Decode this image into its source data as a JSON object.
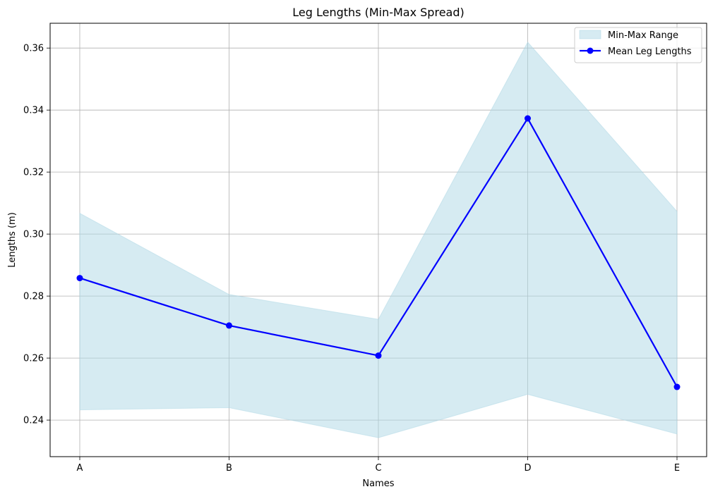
{
  "chart_data": {
    "type": "line",
    "title": "Leg Lengths (Min-Max Spread)",
    "xlabel": "Names",
    "ylabel": "Lengths (m)",
    "categories": [
      "A",
      "B",
      "C",
      "D",
      "E"
    ],
    "series": [
      {
        "name": "Mean Leg Lengths",
        "values": [
          0.2858,
          0.2705,
          0.2608,
          0.3373,
          0.2507
        ],
        "color": "#0000ff",
        "marker": "circle"
      }
    ],
    "range_band": {
      "name": "Min-Max Range",
      "min": [
        0.2433,
        0.244,
        0.2343,
        0.2483,
        0.2355
      ],
      "max": [
        0.3067,
        0.2805,
        0.2725,
        0.3619,
        0.3073
      ],
      "color": "#add8e6"
    },
    "ylim": [
      0.2282,
      0.368
    ],
    "yticks": [
      "0.24",
      "0.26",
      "0.28",
      "0.30",
      "0.32",
      "0.34",
      "0.36"
    ],
    "grid": true,
    "legend_position": "top-right"
  }
}
